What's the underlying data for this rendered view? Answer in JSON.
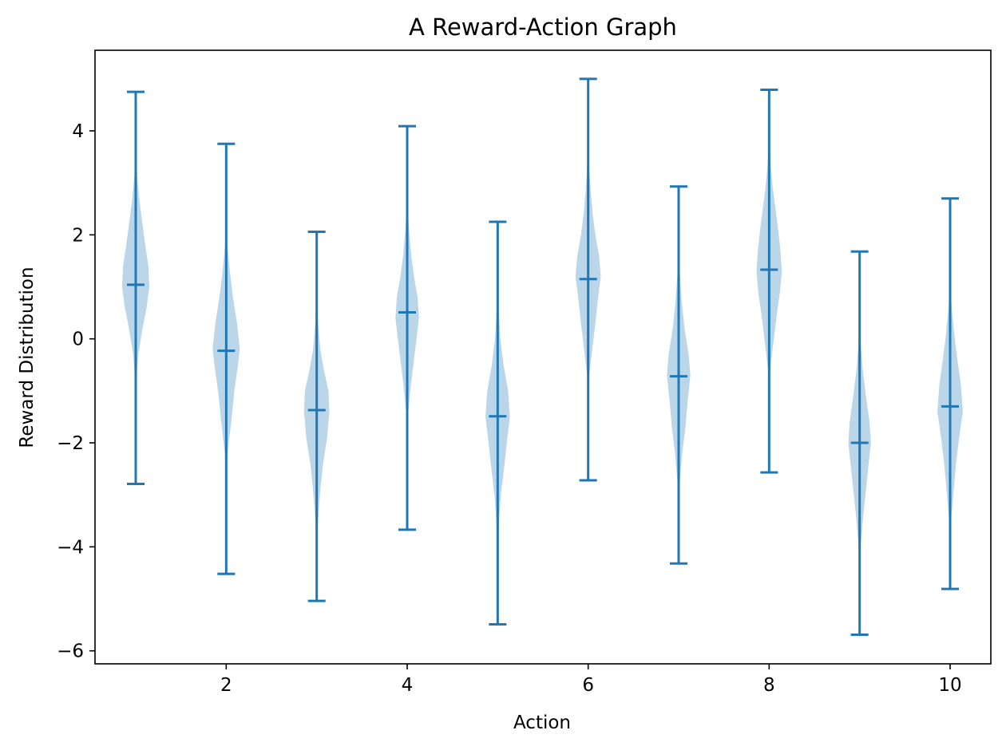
{
  "chart_data": {
    "type": "violin",
    "title": "A Reward-Action Graph",
    "xlabel": "Action",
    "ylabel": "Reward Distribution",
    "xlim": [
      0.55,
      10.45
    ],
    "ylim": [
      -6.25,
      5.55
    ],
    "xticks": [
      2,
      4,
      6,
      8,
      10
    ],
    "yticks": [
      -6,
      -4,
      -2,
      0,
      2,
      4
    ],
    "colors": {
      "line": "#1f77b4",
      "body": "#1f77b4",
      "body_opacity": 0.3
    },
    "grid": false,
    "violins": [
      {
        "x": 1,
        "min": -2.79,
        "max": 4.75,
        "median": 1.04,
        "profile": [
          [
            -1.2,
            0.0
          ],
          [
            -0.8,
            0.006
          ],
          [
            -0.3,
            0.028
          ],
          [
            0.2,
            0.075
          ],
          [
            0.6,
            0.12
          ],
          [
            1.0,
            0.15
          ],
          [
            1.4,
            0.14
          ],
          [
            1.8,
            0.105
          ],
          [
            2.2,
            0.075
          ],
          [
            2.6,
            0.045
          ],
          [
            3.0,
            0.022
          ],
          [
            3.4,
            0.0
          ]
        ]
      },
      {
        "x": 2,
        "min": -4.52,
        "max": 3.75,
        "median": -0.23,
        "profile": [
          [
            -2.7,
            0.0
          ],
          [
            -2.2,
            0.015
          ],
          [
            -1.6,
            0.055
          ],
          [
            -1.0,
            0.09
          ],
          [
            -0.5,
            0.13
          ],
          [
            -0.2,
            0.15
          ],
          [
            0.3,
            0.12
          ],
          [
            0.8,
            0.075
          ],
          [
            1.3,
            0.04
          ],
          [
            1.7,
            0.018
          ],
          [
            2.1,
            0.0
          ]
        ]
      },
      {
        "x": 3,
        "min": -5.04,
        "max": 2.06,
        "median": -1.37,
        "profile": [
          [
            -3.9,
            0.0
          ],
          [
            -3.4,
            0.018
          ],
          [
            -2.9,
            0.04
          ],
          [
            -2.4,
            0.07
          ],
          [
            -1.9,
            0.115
          ],
          [
            -1.4,
            0.14
          ],
          [
            -1.0,
            0.13
          ],
          [
            -0.6,
            0.08
          ],
          [
            -0.2,
            0.04
          ],
          [
            0.3,
            0.015
          ],
          [
            0.9,
            0.0
          ]
        ]
      },
      {
        "x": 4,
        "min": -3.67,
        "max": 4.09,
        "median": 0.51,
        "profile": [
          [
            -1.9,
            0.0
          ],
          [
            -1.4,
            0.012
          ],
          [
            -0.9,
            0.04
          ],
          [
            -0.4,
            0.075
          ],
          [
            0.1,
            0.11
          ],
          [
            0.4,
            0.13
          ],
          [
            0.8,
            0.115
          ],
          [
            1.2,
            0.075
          ],
          [
            1.6,
            0.045
          ],
          [
            2.0,
            0.025
          ],
          [
            2.4,
            0.01
          ],
          [
            2.8,
            0.0
          ]
        ]
      },
      {
        "x": 5,
        "min": -5.49,
        "max": 2.25,
        "median": -1.49,
        "profile": [
          [
            -4.0,
            0.0
          ],
          [
            -3.5,
            0.015
          ],
          [
            -3.0,
            0.035
          ],
          [
            -2.5,
            0.07
          ],
          [
            -2.0,
            0.1
          ],
          [
            -1.5,
            0.135
          ],
          [
            -1.0,
            0.115
          ],
          [
            -0.5,
            0.065
          ],
          [
            0.0,
            0.03
          ],
          [
            0.5,
            0.012
          ],
          [
            0.9,
            0.0
          ]
        ]
      },
      {
        "x": 6,
        "min": -2.72,
        "max": 5.0,
        "median": 1.15,
        "profile": [
          [
            -1.2,
            0.0
          ],
          [
            -0.7,
            0.012
          ],
          [
            -0.2,
            0.045
          ],
          [
            0.3,
            0.08
          ],
          [
            0.8,
            0.11
          ],
          [
            1.2,
            0.14
          ],
          [
            1.6,
            0.12
          ],
          [
            2.0,
            0.08
          ],
          [
            2.4,
            0.05
          ],
          [
            2.8,
            0.03
          ],
          [
            3.2,
            0.015
          ],
          [
            3.6,
            0.0
          ]
        ]
      },
      {
        "x": 7,
        "min": -4.32,
        "max": 2.93,
        "median": -0.72,
        "profile": [
          [
            -3.2,
            0.0
          ],
          [
            -2.7,
            0.015
          ],
          [
            -2.2,
            0.04
          ],
          [
            -1.7,
            0.075
          ],
          [
            -1.2,
            0.1
          ],
          [
            -0.7,
            0.13
          ],
          [
            -0.3,
            0.11
          ],
          [
            0.2,
            0.065
          ],
          [
            0.7,
            0.035
          ],
          [
            1.2,
            0.015
          ],
          [
            1.7,
            0.0
          ]
        ]
      },
      {
        "x": 8,
        "min": -2.57,
        "max": 4.79,
        "median": 1.33,
        "profile": [
          [
            -1.1,
            0.0
          ],
          [
            -0.6,
            0.012
          ],
          [
            -0.1,
            0.045
          ],
          [
            0.4,
            0.08
          ],
          [
            0.9,
            0.12
          ],
          [
            1.3,
            0.14
          ],
          [
            1.7,
            0.125
          ],
          [
            2.1,
            0.1
          ],
          [
            2.5,
            0.07
          ],
          [
            2.9,
            0.04
          ],
          [
            3.3,
            0.02
          ],
          [
            3.8,
            0.0
          ]
        ]
      },
      {
        "x": 9,
        "min": -5.69,
        "max": 1.68,
        "median": -2.0,
        "profile": [
          [
            -4.4,
            0.0
          ],
          [
            -3.9,
            0.015
          ],
          [
            -3.4,
            0.04
          ],
          [
            -2.9,
            0.07
          ],
          [
            -2.4,
            0.1
          ],
          [
            -2.0,
            0.125
          ],
          [
            -1.6,
            0.11
          ],
          [
            -1.1,
            0.07
          ],
          [
            -0.6,
            0.035
          ],
          [
            -0.1,
            0.012
          ],
          [
            0.4,
            0.0
          ]
        ]
      },
      {
        "x": 10,
        "min": -4.81,
        "max": 2.7,
        "median": -1.3,
        "profile": [
          [
            -3.9,
            0.0
          ],
          [
            -3.4,
            0.015
          ],
          [
            -2.9,
            0.04
          ],
          [
            -2.4,
            0.065
          ],
          [
            -1.9,
            0.1
          ],
          [
            -1.4,
            0.14
          ],
          [
            -0.9,
            0.12
          ],
          [
            -0.4,
            0.08
          ],
          [
            0.1,
            0.045
          ],
          [
            0.6,
            0.018
          ],
          [
            1.1,
            0.0
          ]
        ]
      }
    ]
  }
}
